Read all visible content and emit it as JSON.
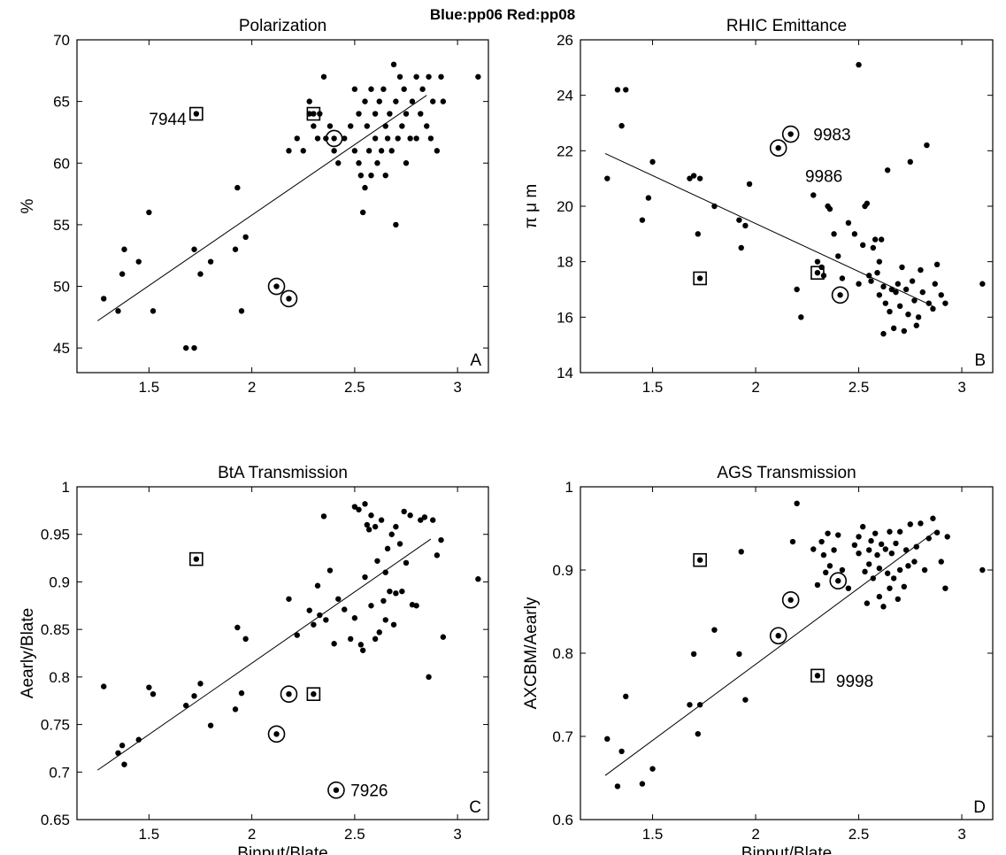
{
  "figure": {
    "suptitle": "Blue:pp06  Red:pp08"
  },
  "chart_data": [
    {
      "type": "scatter",
      "panel": "A",
      "title": "Polarization",
      "xlabel": "",
      "ylabel": "%",
      "xlim": [
        1.15,
        3.15
      ],
      "ylim": [
        43,
        70
      ],
      "xticks": [
        1.5,
        2,
        2.5,
        3
      ],
      "yticks": [
        45,
        50,
        55,
        60,
        65,
        70
      ],
      "grid": false,
      "points": [
        [
          1.28,
          49
        ],
        [
          1.35,
          48
        ],
        [
          1.37,
          51
        ],
        [
          1.38,
          53
        ],
        [
          1.45,
          52
        ],
        [
          1.5,
          56
        ],
        [
          1.52,
          48
        ],
        [
          1.68,
          45
        ],
        [
          1.72,
          45
        ],
        [
          1.72,
          53
        ],
        [
          1.75,
          51
        ],
        [
          1.8,
          52
        ],
        [
          1.92,
          53
        ],
        [
          1.93,
          58
        ],
        [
          1.95,
          48
        ],
        [
          1.97,
          54
        ],
        [
          2.18,
          61
        ],
        [
          2.22,
          62
        ],
        [
          2.25,
          61
        ],
        [
          2.28,
          64
        ],
        [
          2.28,
          65
        ],
        [
          2.3,
          63
        ],
        [
          2.32,
          62
        ],
        [
          2.33,
          64
        ],
        [
          2.35,
          67
        ],
        [
          2.36,
          62
        ],
        [
          2.38,
          63
        ],
        [
          2.4,
          61
        ],
        [
          2.42,
          60
        ],
        [
          2.45,
          62
        ],
        [
          2.48,
          63
        ],
        [
          2.5,
          61
        ],
        [
          2.5,
          66
        ],
        [
          2.52,
          64
        ],
        [
          2.52,
          60
        ],
        [
          2.53,
          59
        ],
        [
          2.54,
          56
        ],
        [
          2.55,
          65
        ],
        [
          2.55,
          58
        ],
        [
          2.56,
          63
        ],
        [
          2.57,
          61
        ],
        [
          2.58,
          66
        ],
        [
          2.58,
          59
        ],
        [
          2.6,
          62
        ],
        [
          2.6,
          64
        ],
        [
          2.61,
          60
        ],
        [
          2.62,
          65
        ],
        [
          2.63,
          61
        ],
        [
          2.64,
          66
        ],
        [
          2.65,
          63
        ],
        [
          2.65,
          59
        ],
        [
          2.66,
          62
        ],
        [
          2.67,
          64
        ],
        [
          2.68,
          61
        ],
        [
          2.69,
          68
        ],
        [
          2.7,
          55
        ],
        [
          2.7,
          65
        ],
        [
          2.71,
          62
        ],
        [
          2.72,
          67
        ],
        [
          2.73,
          63
        ],
        [
          2.74,
          66
        ],
        [
          2.75,
          60
        ],
        [
          2.75,
          64
        ],
        [
          2.77,
          62
        ],
        [
          2.78,
          65
        ],
        [
          2.8,
          67
        ],
        [
          2.8,
          62
        ],
        [
          2.82,
          64
        ],
        [
          2.83,
          66
        ],
        [
          2.85,
          63
        ],
        [
          2.86,
          67
        ],
        [
          2.87,
          62
        ],
        [
          2.88,
          65
        ],
        [
          2.9,
          61
        ],
        [
          2.92,
          67
        ],
        [
          2.93,
          65
        ],
        [
          3.1,
          67
        ]
      ],
      "squares": [
        [
          1.73,
          64
        ],
        [
          2.3,
          64
        ]
      ],
      "circles": [
        [
          2.12,
          50
        ],
        [
          2.18,
          49
        ],
        [
          2.4,
          62
        ]
      ],
      "fit_line": [
        [
          1.25,
          47.2
        ],
        [
          2.85,
          65.5
        ]
      ],
      "annotations": [
        {
          "text": "7944",
          "x": 1.5,
          "y": 63.6
        }
      ]
    },
    {
      "type": "scatter",
      "panel": "B",
      "title": "RHIC Emittance",
      "xlabel": "",
      "ylabel": "π μ m",
      "xlim": [
        1.15,
        3.15
      ],
      "ylim": [
        14,
        26
      ],
      "xticks": [
        1.5,
        2,
        2.5,
        3
      ],
      "yticks": [
        14,
        16,
        18,
        20,
        22,
        24,
        26
      ],
      "grid": false,
      "points": [
        [
          1.28,
          21
        ],
        [
          1.33,
          24.2
        ],
        [
          1.35,
          22.9
        ],
        [
          1.37,
          24.2
        ],
        [
          1.45,
          19.5
        ],
        [
          1.48,
          20.3
        ],
        [
          1.5,
          21.6
        ],
        [
          1.68,
          21
        ],
        [
          1.7,
          21.1
        ],
        [
          1.72,
          19
        ],
        [
          1.73,
          21
        ],
        [
          1.8,
          20
        ],
        [
          1.92,
          19.5
        ],
        [
          1.93,
          18.5
        ],
        [
          1.95,
          19.3
        ],
        [
          1.97,
          20.8
        ],
        [
          2.2,
          17
        ],
        [
          2.22,
          16
        ],
        [
          2.28,
          20.4
        ],
        [
          2.3,
          18
        ],
        [
          2.32,
          17.8
        ],
        [
          2.33,
          17.5
        ],
        [
          2.35,
          20
        ],
        [
          2.36,
          19.9
        ],
        [
          2.38,
          19
        ],
        [
          2.4,
          18.2
        ],
        [
          2.42,
          17.4
        ],
        [
          2.45,
          19.4
        ],
        [
          2.48,
          19
        ],
        [
          2.5,
          17.2
        ],
        [
          2.5,
          25.1
        ],
        [
          2.52,
          18.6
        ],
        [
          2.53,
          20
        ],
        [
          2.54,
          20.1
        ],
        [
          2.55,
          17.5
        ],
        [
          2.56,
          17.3
        ],
        [
          2.57,
          18.5
        ],
        [
          2.58,
          18.8
        ],
        [
          2.59,
          17.6
        ],
        [
          2.6,
          18
        ],
        [
          2.6,
          16.8
        ],
        [
          2.61,
          18.8
        ],
        [
          2.62,
          17.1
        ],
        [
          2.62,
          15.4
        ],
        [
          2.63,
          16.5
        ],
        [
          2.64,
          21.3
        ],
        [
          2.65,
          16.2
        ],
        [
          2.66,
          17
        ],
        [
          2.67,
          15.6
        ],
        [
          2.68,
          16.9
        ],
        [
          2.69,
          17.2
        ],
        [
          2.7,
          16.4
        ],
        [
          2.71,
          17.8
        ],
        [
          2.72,
          15.5
        ],
        [
          2.73,
          17
        ],
        [
          2.74,
          16.1
        ],
        [
          2.75,
          21.6
        ],
        [
          2.76,
          17.3
        ],
        [
          2.77,
          16.6
        ],
        [
          2.78,
          15.7
        ],
        [
          2.79,
          16
        ],
        [
          2.8,
          17.7
        ],
        [
          2.81,
          16.9
        ],
        [
          2.83,
          22.2
        ],
        [
          2.84,
          16.5
        ],
        [
          2.86,
          16.3
        ],
        [
          2.87,
          17.2
        ],
        [
          2.88,
          17.9
        ],
        [
          2.9,
          16.8
        ],
        [
          2.92,
          16.5
        ],
        [
          3.1,
          17.2
        ]
      ],
      "squares": [
        [
          1.73,
          17.4
        ],
        [
          2.3,
          17.6
        ]
      ],
      "circles": [
        [
          2.11,
          22.1
        ],
        [
          2.17,
          22.6
        ],
        [
          2.41,
          16.8
        ]
      ],
      "fit_line": [
        [
          1.27,
          21.9
        ],
        [
          2.86,
          16.4
        ]
      ],
      "annotations": [
        {
          "text": "9983",
          "x": 2.28,
          "y": 22.6
        },
        {
          "text": "9986",
          "x": 2.24,
          "y": 21.1
        }
      ]
    },
    {
      "type": "scatter",
      "panel": "C",
      "title": "BtA Transmission",
      "xlabel": "Binput/Blate",
      "ylabel": "Aearly/Blate",
      "xlim": [
        1.15,
        3.15
      ],
      "ylim": [
        0.65,
        1
      ],
      "xticks": [
        1.5,
        2,
        2.5,
        3
      ],
      "yticks": [
        0.65,
        0.7,
        0.75,
        0.8,
        0.85,
        0.9,
        0.95,
        1
      ],
      "grid": false,
      "points": [
        [
          1.28,
          0.79
        ],
        [
          1.35,
          0.72
        ],
        [
          1.37,
          0.728
        ],
        [
          1.38,
          0.708
        ],
        [
          1.45,
          0.734
        ],
        [
          1.5,
          0.789
        ],
        [
          1.52,
          0.782
        ],
        [
          1.68,
          0.77
        ],
        [
          1.72,
          0.78
        ],
        [
          1.75,
          0.793
        ],
        [
          1.8,
          0.749
        ],
        [
          1.92,
          0.766
        ],
        [
          1.93,
          0.852
        ],
        [
          1.95,
          0.783
        ],
        [
          1.97,
          0.84
        ],
        [
          2.18,
          0.882
        ],
        [
          2.22,
          0.844
        ],
        [
          2.28,
          0.87
        ],
        [
          2.3,
          0.855
        ],
        [
          2.32,
          0.896
        ],
        [
          2.33,
          0.865
        ],
        [
          2.35,
          0.969
        ],
        [
          2.36,
          0.86
        ],
        [
          2.38,
          0.912
        ],
        [
          2.4,
          0.835
        ],
        [
          2.42,
          0.882
        ],
        [
          2.45,
          0.871
        ],
        [
          2.48,
          0.84
        ],
        [
          2.5,
          0.979
        ],
        [
          2.5,
          0.862
        ],
        [
          2.52,
          0.976
        ],
        [
          2.53,
          0.834
        ],
        [
          2.54,
          0.828
        ],
        [
          2.55,
          0.905
        ],
        [
          2.55,
          0.982
        ],
        [
          2.56,
          0.96
        ],
        [
          2.57,
          0.955
        ],
        [
          2.58,
          0.875
        ],
        [
          2.58,
          0.97
        ],
        [
          2.6,
          0.958
        ],
        [
          2.6,
          0.84
        ],
        [
          2.61,
          0.922
        ],
        [
          2.62,
          0.847
        ],
        [
          2.63,
          0.965
        ],
        [
          2.64,
          0.88
        ],
        [
          2.65,
          0.91
        ],
        [
          2.65,
          0.86
        ],
        [
          2.66,
          0.935
        ],
        [
          2.67,
          0.89
        ],
        [
          2.68,
          0.95
        ],
        [
          2.69,
          0.855
        ],
        [
          2.7,
          0.958
        ],
        [
          2.7,
          0.888
        ],
        [
          2.72,
          0.94
        ],
        [
          2.73,
          0.89
        ],
        [
          2.74,
          0.974
        ],
        [
          2.75,
          0.92
        ],
        [
          2.77,
          0.97
        ],
        [
          2.78,
          0.876
        ],
        [
          2.8,
          0.875
        ],
        [
          2.82,
          0.965
        ],
        [
          2.84,
          0.968
        ],
        [
          2.86,
          0.8
        ],
        [
          2.88,
          0.965
        ],
        [
          2.9,
          0.928
        ],
        [
          2.92,
          0.944
        ],
        [
          2.93,
          0.842
        ],
        [
          3.1,
          0.903
        ]
      ],
      "squares": [
        [
          1.73,
          0.924
        ],
        [
          2.3,
          0.782
        ]
      ],
      "circles": [
        [
          2.12,
          0.74
        ],
        [
          2.18,
          0.782
        ],
        [
          2.41,
          0.681
        ]
      ],
      "fit_line": [
        [
          1.25,
          0.702
        ],
        [
          2.87,
          0.945
        ]
      ],
      "annotations": [
        {
          "text": "7926",
          "x": 2.48,
          "y": 0.681
        }
      ]
    },
    {
      "type": "scatter",
      "panel": "D",
      "title": "AGS Transmission",
      "xlabel": "Binput/Blate",
      "ylabel": "AXCBM/Aearly",
      "xlim": [
        1.15,
        3.15
      ],
      "ylim": [
        0.6,
        1
      ],
      "xticks": [
        1.5,
        2,
        2.5,
        3
      ],
      "yticks": [
        0.6,
        0.7,
        0.8,
        0.9,
        1
      ],
      "grid": false,
      "points": [
        [
          1.28,
          0.697
        ],
        [
          1.33,
          0.64
        ],
        [
          1.35,
          0.682
        ],
        [
          1.37,
          0.748
        ],
        [
          1.45,
          0.643
        ],
        [
          1.5,
          0.661
        ],
        [
          1.68,
          0.738
        ],
        [
          1.7,
          0.799
        ],
        [
          1.72,
          0.703
        ],
        [
          1.73,
          0.738
        ],
        [
          1.8,
          0.828
        ],
        [
          1.92,
          0.799
        ],
        [
          1.93,
          0.922
        ],
        [
          1.95,
          0.744
        ],
        [
          2.2,
          0.98
        ],
        [
          2.18,
          0.934
        ],
        [
          2.28,
          0.925
        ],
        [
          2.3,
          0.882
        ],
        [
          2.32,
          0.934
        ],
        [
          2.33,
          0.918
        ],
        [
          2.34,
          0.897
        ],
        [
          2.35,
          0.944
        ],
        [
          2.36,
          0.905
        ],
        [
          2.38,
          0.924
        ],
        [
          2.4,
          0.942
        ],
        [
          2.42,
          0.9
        ],
        [
          2.45,
          0.878
        ],
        [
          2.48,
          0.93
        ],
        [
          2.5,
          0.94
        ],
        [
          2.5,
          0.92
        ],
        [
          2.52,
          0.952
        ],
        [
          2.53,
          0.898
        ],
        [
          2.54,
          0.86
        ],
        [
          2.55,
          0.924
        ],
        [
          2.55,
          0.907
        ],
        [
          2.56,
          0.935
        ],
        [
          2.57,
          0.89
        ],
        [
          2.58,
          0.944
        ],
        [
          2.59,
          0.918
        ],
        [
          2.6,
          0.902
        ],
        [
          2.6,
          0.868
        ],
        [
          2.61,
          0.931
        ],
        [
          2.62,
          0.856
        ],
        [
          2.63,
          0.925
        ],
        [
          2.64,
          0.896
        ],
        [
          2.65,
          0.946
        ],
        [
          2.65,
          0.878
        ],
        [
          2.66,
          0.92
        ],
        [
          2.67,
          0.89
        ],
        [
          2.68,
          0.932
        ],
        [
          2.69,
          0.865
        ],
        [
          2.7,
          0.946
        ],
        [
          2.7,
          0.9
        ],
        [
          2.72,
          0.88
        ],
        [
          2.73,
          0.924
        ],
        [
          2.74,
          0.905
        ],
        [
          2.75,
          0.955
        ],
        [
          2.77,
          0.91
        ],
        [
          2.78,
          0.928
        ],
        [
          2.8,
          0.956
        ],
        [
          2.82,
          0.9
        ],
        [
          2.84,
          0.938
        ],
        [
          2.86,
          0.962
        ],
        [
          2.88,
          0.945
        ],
        [
          2.9,
          0.91
        ],
        [
          2.92,
          0.878
        ],
        [
          2.93,
          0.94
        ],
        [
          3.1,
          0.9
        ]
      ],
      "squares": [
        [
          1.73,
          0.912
        ],
        [
          2.3,
          0.773
        ]
      ],
      "circles": [
        [
          2.11,
          0.821
        ],
        [
          2.17,
          0.864
        ],
        [
          2.4,
          0.887
        ]
      ],
      "fit_line": [
        [
          1.27,
          0.653
        ],
        [
          2.87,
          0.946
        ]
      ],
      "annotations": [
        {
          "text": "9998",
          "x": 2.39,
          "y": 0.767
        }
      ]
    }
  ]
}
